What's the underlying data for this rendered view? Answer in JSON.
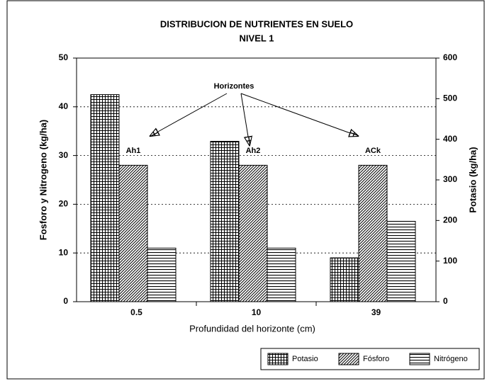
{
  "chart_data": {
    "type": "bar",
    "title": "DISTRIBUCION DE NUTRIENTES EN SUELO",
    "subtitle": "NIVEL 1",
    "x_label": "Profundidad del horizonte (cm)",
    "y_label": "Fosforo y Nitrogeno (kg/ha)",
    "y2_label": "Potasio (kg/ha)",
    "categories": [
      "0.5",
      "10",
      "39"
    ],
    "series": [
      {
        "name": "Potasio",
        "color": "#000000",
        "pattern": "grid",
        "axis": "y2",
        "values": [
          510,
          395,
          108
        ]
      },
      {
        "name": "Fósforo",
        "color": "#000000",
        "pattern": "diagonal",
        "values": [
          28,
          28,
          28
        ]
      },
      {
        "name": "Nitrógeno",
        "color": "#000000",
        "pattern": "horizontal",
        "values": [
          11,
          11,
          16.5
        ]
      }
    ],
    "annotations": [
      "Horizontes",
      "Ah1",
      "Ah2",
      "ACk"
    ],
    "ylim": [
      0,
      50
    ],
    "yticks": [
      0,
      10,
      20,
      30,
      40,
      50
    ],
    "y2lim": [
      0,
      600
    ],
    "y2ticks": [
      0,
      100,
      200,
      300,
      400,
      500,
      600
    ],
    "grid": true,
    "legend": "bottom-right"
  }
}
